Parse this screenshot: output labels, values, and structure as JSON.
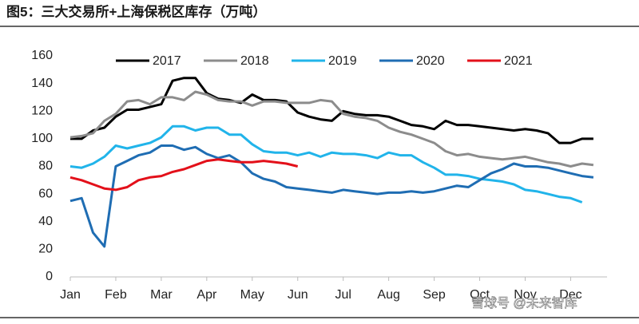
{
  "chart_data": {
    "type": "line",
    "title": "图5：三大交易所+上海保税区库存（万吨）",
    "watermark": "雪球号 @未来智库",
    "x": [
      0,
      0.25,
      0.5,
      0.75,
      1,
      1.25,
      1.5,
      1.75,
      2,
      2.25,
      2.5,
      2.75,
      3,
      3.25,
      3.5,
      3.75,
      4,
      4.25,
      4.5,
      4.75,
      5,
      5.25,
      5.5,
      5.75,
      6,
      6.25,
      6.5,
      6.75,
      7,
      7.25,
      7.5,
      7.75,
      8,
      8.25,
      8.5,
      8.75,
      9,
      9.25,
      9.5,
      9.75,
      10,
      10.25,
      10.5,
      10.75,
      11,
      11.25,
      11.5
    ],
    "xlim": [
      0,
      11.8
    ],
    "xticks": [
      {
        "value": 0,
        "label": "Jan"
      },
      {
        "value": 1,
        "label": "Feb"
      },
      {
        "value": 2,
        "label": "Mar"
      },
      {
        "value": 3,
        "label": "Apr"
      },
      {
        "value": 4,
        "label": "May"
      },
      {
        "value": 5,
        "label": "Jun"
      },
      {
        "value": 6,
        "label": "Jul"
      },
      {
        "value": 7,
        "label": "Aug"
      },
      {
        "value": 8,
        "label": "Sep"
      },
      {
        "value": 9,
        "label": "Oct"
      },
      {
        "value": 10,
        "label": "Nov"
      },
      {
        "value": 11,
        "label": "Dec"
      }
    ],
    "ylim": [
      0,
      160
    ],
    "yticks": [
      0,
      20,
      40,
      60,
      80,
      100,
      120,
      140,
      160
    ],
    "grid": false,
    "legend": "top",
    "series": [
      {
        "name": "2017",
        "color": "#000000",
        "values": [
          100,
          100,
          106,
          108,
          116,
          121,
          121,
          123,
          125,
          142,
          144,
          144,
          133,
          129,
          128,
          126,
          132,
          128,
          128,
          127,
          119,
          116,
          114,
          113,
          120,
          118,
          117,
          117,
          116,
          113,
          110,
          109,
          107,
          113,
          110,
          110,
          109,
          108,
          107,
          106,
          107,
          106,
          104,
          97,
          97,
          100,
          100
        ]
      },
      {
        "name": "2018",
        "color": "#8c8c8c",
        "values": [
          101,
          102,
          104,
          113,
          118,
          127,
          128,
          125,
          130,
          130,
          128,
          134,
          132,
          128,
          127,
          127,
          124,
          127,
          127,
          126,
          126,
          126,
          128,
          127,
          118,
          116,
          115,
          113,
          108,
          105,
          103,
          100,
          97,
          91,
          88,
          89,
          87,
          86,
          85,
          86,
          87,
          85,
          83,
          82,
          80,
          82,
          81
        ]
      },
      {
        "name": "2019",
        "color": "#21b4ea",
        "values": [
          80,
          79,
          82,
          87,
          95,
          93,
          95,
          97,
          101,
          109,
          109,
          106,
          108,
          108,
          103,
          103,
          96,
          91,
          90,
          90,
          88,
          90,
          87,
          90,
          89,
          89,
          88,
          86,
          90,
          88,
          88,
          83,
          79,
          74,
          74,
          73,
          71,
          70,
          69,
          67,
          63,
          62,
          60,
          58,
          57,
          54,
          null
        ]
      },
      {
        "name": "2020",
        "color": "#1f6db3",
        "values": [
          55,
          57,
          32,
          22,
          80,
          84,
          88,
          90,
          95,
          95,
          92,
          94,
          89,
          86,
          88,
          83,
          75,
          71,
          69,
          65,
          64,
          63,
          62,
          61,
          63,
          62,
          61,
          60,
          61,
          61,
          62,
          61,
          62,
          64,
          66,
          65,
          70,
          75,
          78,
          82,
          80,
          80,
          79,
          77,
          75,
          73,
          72
        ]
      },
      {
        "name": "2021",
        "color": "#e3101a",
        "values": [
          72,
          70,
          67,
          64,
          63,
          65,
          70,
          72,
          73,
          76,
          78,
          81,
          84,
          85,
          84,
          83,
          83,
          84,
          83,
          82,
          80,
          null,
          null,
          null,
          null,
          null,
          null,
          null,
          null,
          null,
          null,
          null,
          null,
          null,
          null,
          null,
          null,
          null,
          null,
          null,
          null,
          null,
          null,
          null,
          null,
          null,
          null
        ]
      }
    ]
  }
}
